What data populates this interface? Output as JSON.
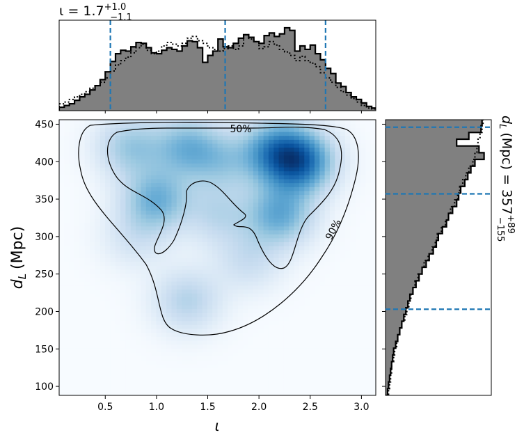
{
  "chart_data": [
    {
      "panel": "top-marginal",
      "type": "histogram",
      "title": "ι = 1.7",
      "title_sup": "+1.0",
      "title_sub": "−1.1",
      "xlim": [
        0.05,
        3.14
      ],
      "quantiles": [
        0.55,
        1.67,
        2.65
      ],
      "quantile_color": "#1f77b4",
      "fill_color": "#808080",
      "bin_edges": [
        0.05,
        0.1,
        0.15,
        0.2,
        0.25,
        0.3,
        0.35,
        0.4,
        0.45,
        0.5,
        0.55,
        0.6,
        0.65,
        0.7,
        0.75,
        0.8,
        0.85,
        0.9,
        0.95,
        1.0,
        1.05,
        1.1,
        1.15,
        1.2,
        1.25,
        1.3,
        1.35,
        1.4,
        1.45,
        1.5,
        1.55,
        1.6,
        1.65,
        1.7,
        1.75,
        1.8,
        1.85,
        1.9,
        1.95,
        2.0,
        2.05,
        2.1,
        2.15,
        2.2,
        2.25,
        2.3,
        2.35,
        2.4,
        2.45,
        2.5,
        2.55,
        2.6,
        2.65,
        2.7,
        2.75,
        2.8,
        2.85,
        2.9,
        2.95,
        3.0,
        3.05,
        3.1,
        3.14
      ],
      "filled_density": [
        0.04,
        0.06,
        0.08,
        0.12,
        0.16,
        0.19,
        0.24,
        0.29,
        0.36,
        0.45,
        0.57,
        0.66,
        0.7,
        0.69,
        0.74,
        0.79,
        0.78,
        0.73,
        0.67,
        0.66,
        0.7,
        0.73,
        0.71,
        0.69,
        0.75,
        0.81,
        0.8,
        0.73,
        0.56,
        0.64,
        0.69,
        0.83,
        0.74,
        0.73,
        0.78,
        0.84,
        0.88,
        0.85,
        0.8,
        0.78,
        0.87,
        0.9,
        0.86,
        0.89,
        0.96,
        0.93,
        0.69,
        0.75,
        0.71,
        0.76,
        0.66,
        0.59,
        0.49,
        0.43,
        0.32,
        0.28,
        0.21,
        0.16,
        0.13,
        0.09,
        0.05,
        0.03
      ],
      "dotted_density": [
        0.08,
        0.1,
        0.13,
        0.16,
        0.19,
        0.22,
        0.26,
        0.29,
        0.33,
        0.38,
        0.46,
        0.53,
        0.58,
        0.62,
        0.67,
        0.73,
        0.77,
        0.7,
        0.66,
        0.69,
        0.75,
        0.79,
        0.77,
        0.75,
        0.78,
        0.84,
        0.86,
        0.81,
        0.78,
        0.73,
        0.71,
        0.69,
        0.72,
        0.75,
        0.71,
        0.75,
        0.88,
        0.83,
        0.8,
        0.72,
        0.74,
        0.8,
        0.76,
        0.71,
        0.68,
        0.64,
        0.58,
        0.63,
        0.58,
        0.55,
        0.51,
        0.44,
        0.38,
        0.33,
        0.27,
        0.22,
        0.18,
        0.14,
        0.1,
        0.06,
        0.03,
        0.02
      ]
    },
    {
      "panel": "joint",
      "type": "heatmap",
      "xlabel": "ι",
      "ylabel_base": "d",
      "ylabel_sub": "L",
      "ylabel_rest": "(Mpc)",
      "xlim": [
        0.05,
        3.14
      ],
      "ylim": [
        88,
        456
      ],
      "xticks": [
        0.5,
        1.0,
        1.5,
        2.0,
        2.5,
        3.0
      ],
      "xtick_labels": [
        "0.5",
        "1.0",
        "1.5",
        "2.0",
        "2.5",
        "3.0"
      ],
      "yticks": [
        100,
        150,
        200,
        250,
        300,
        350,
        400,
        450
      ],
      "ytick_labels": [
        "100",
        "150",
        "200",
        "250",
        "300",
        "350",
        "400",
        "450"
      ],
      "colormap": "Blues",
      "contour_labels": [
        "50%",
        "90%"
      ],
      "density_peaks": [
        {
          "x": 2.4,
          "y": 400,
          "weight": 1.0
        },
        {
          "x": 2.15,
          "y": 415,
          "weight": 0.7
        },
        {
          "x": 2.2,
          "y": 330,
          "weight": 0.65
        },
        {
          "x": 1.0,
          "y": 350,
          "weight": 0.6
        },
        {
          "x": 0.75,
          "y": 420,
          "weight": 0.45
        },
        {
          "x": 1.3,
          "y": 420,
          "weight": 0.55
        },
        {
          "x": 1.65,
          "y": 400,
          "weight": 0.35
        },
        {
          "x": 1.6,
          "y": 330,
          "weight": 0.3
        },
        {
          "x": 1.3,
          "y": 215,
          "weight": 0.35
        },
        {
          "x": 1.9,
          "y": 270,
          "weight": 0.25
        },
        {
          "x": 0.8,
          "y": 300,
          "weight": 0.2
        }
      ]
    },
    {
      "panel": "right-marginal",
      "type": "histogram",
      "orientation": "horizontal",
      "label_base": "d",
      "label_sub": "L",
      "label_rest": "(Mpc) = 357",
      "label_sup": "+89",
      "label_subscript": "−155",
      "ylim": [
        88,
        456
      ],
      "quantiles": [
        203,
        357,
        446
      ],
      "bin_edges": [
        88,
        97,
        106,
        115,
        124,
        133,
        142,
        151,
        160,
        169,
        178,
        187,
        196,
        205,
        214,
        223,
        232,
        241,
        250,
        259,
        268,
        277,
        286,
        295,
        304,
        313,
        322,
        331,
        340,
        349,
        358,
        367,
        376,
        385,
        394,
        403,
        412,
        421,
        430,
        439,
        448,
        456
      ],
      "filled_density": [
        0.02,
        0.03,
        0.04,
        0.05,
        0.06,
        0.07,
        0.08,
        0.1,
        0.12,
        0.14,
        0.16,
        0.18,
        0.2,
        0.22,
        0.24,
        0.27,
        0.3,
        0.33,
        0.36,
        0.4,
        0.43,
        0.47,
        0.5,
        0.52,
        0.56,
        0.6,
        0.62,
        0.66,
        0.7,
        0.72,
        0.74,
        0.78,
        0.81,
        0.84,
        0.88,
        0.97,
        0.92,
        0.7,
        0.82,
        0.94,
        0.95
      ],
      "dotted_density": [
        0.03,
        0.04,
        0.05,
        0.06,
        0.06,
        0.08,
        0.09,
        0.11,
        0.12,
        0.14,
        0.16,
        0.19,
        0.21,
        0.23,
        0.25,
        0.27,
        0.29,
        0.32,
        0.36,
        0.38,
        0.42,
        0.46,
        0.49,
        0.51,
        0.55,
        0.59,
        0.62,
        0.64,
        0.68,
        0.71,
        0.73,
        0.76,
        0.79,
        0.82,
        0.86,
        0.88,
        0.9,
        0.91,
        0.93,
        0.95,
        0.96
      ]
    }
  ]
}
